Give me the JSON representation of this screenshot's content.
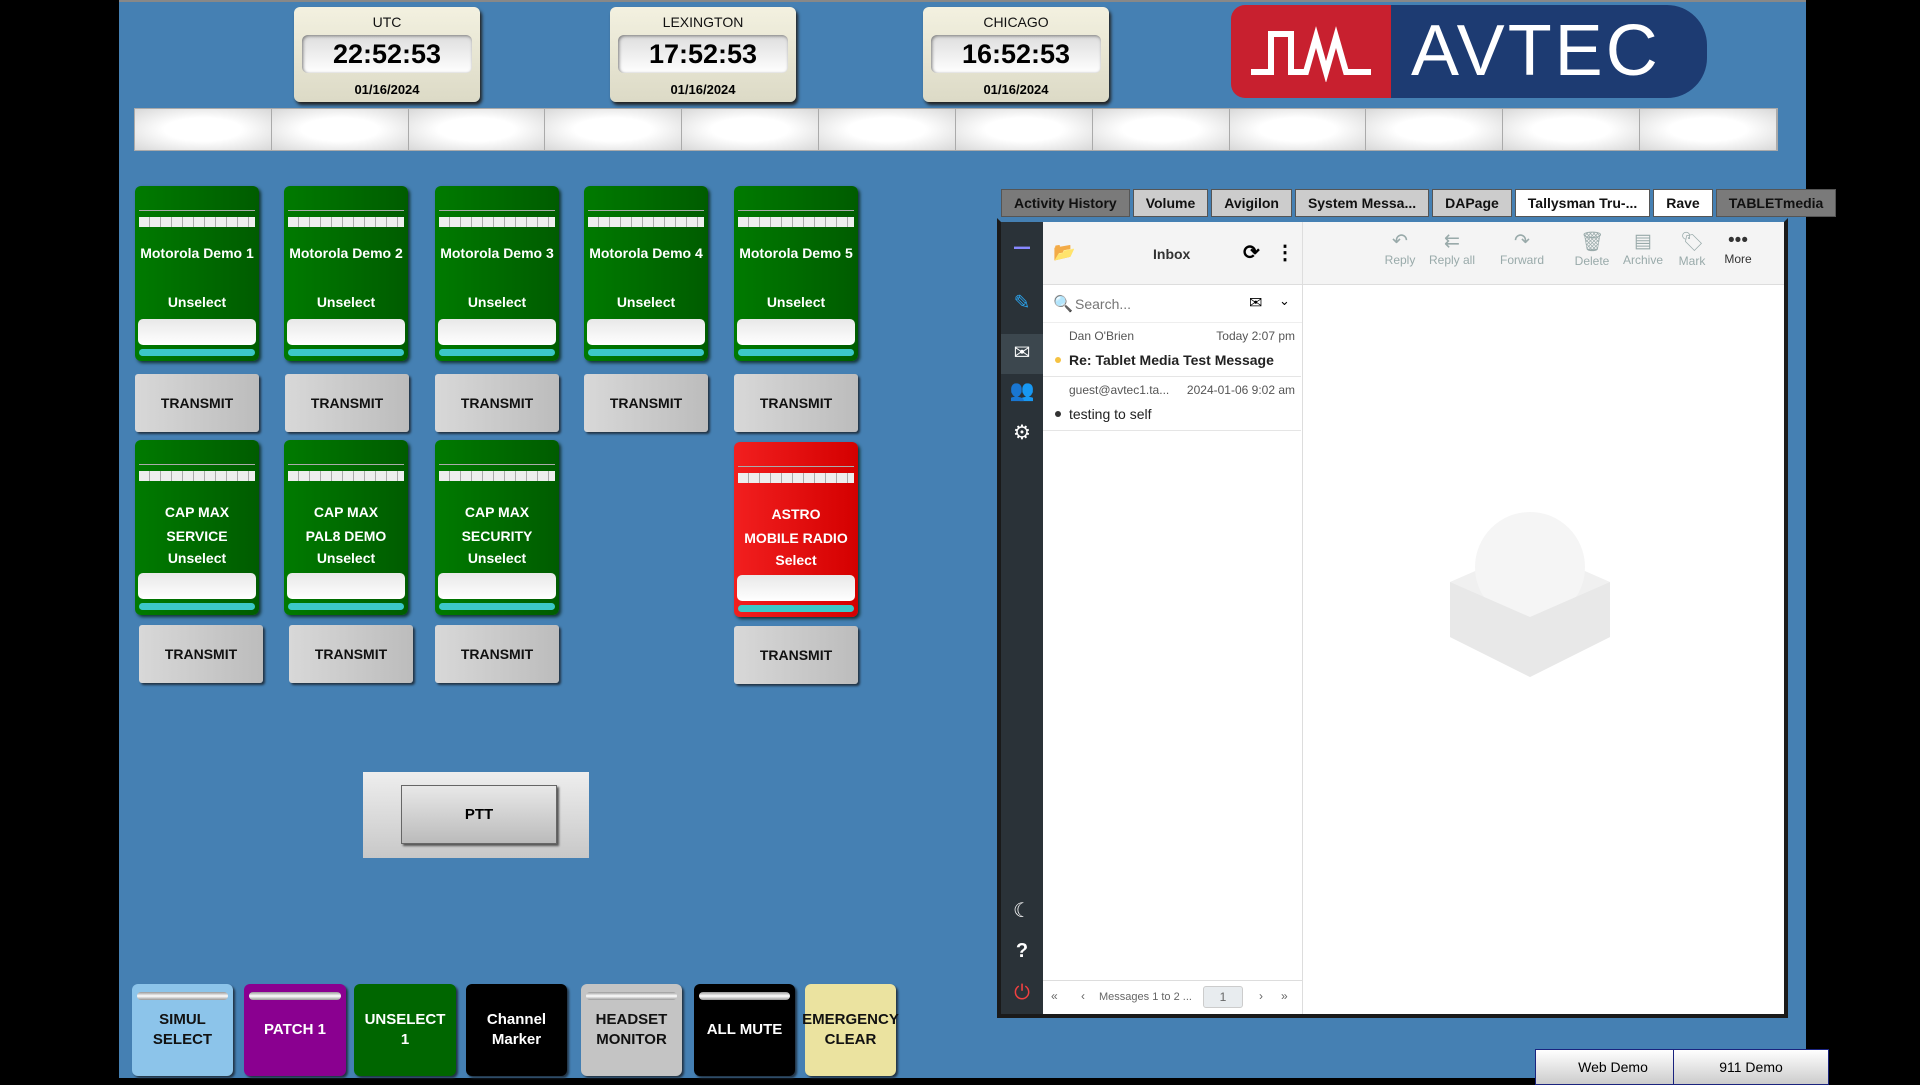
{
  "clocks": [
    {
      "label": "UTC",
      "time": "22:52:53",
      "date": "01/16/2024"
    },
    {
      "label": "LEXINGTON",
      "time": "17:52:53",
      "date": "01/16/2024"
    },
    {
      "label": "CHICAGO",
      "time": "16:52:53",
      "date": "01/16/2024"
    }
  ],
  "logo": {
    "text": "AVTEC"
  },
  "radios": [
    {
      "name": "Motorola Demo 1",
      "state": "Unselect",
      "transmit": "TRANSMIT",
      "color": "#006600"
    },
    {
      "name": "Motorola Demo 2",
      "state": "Unselect",
      "transmit": "TRANSMIT",
      "color": "#006600"
    },
    {
      "name": "Motorola Demo 3",
      "state": "Unselect",
      "transmit": "TRANSMIT",
      "color": "#006600"
    },
    {
      "name": "Motorola Demo 4",
      "state": "Unselect",
      "transmit": "TRANSMIT",
      "color": "#006600"
    },
    {
      "name": "Motorola Demo 5",
      "state": "Unselect",
      "transmit": "TRANSMIT",
      "color": "#006600"
    },
    {
      "name": "CAP MAX\nSERVICE",
      "state": "Unselect",
      "transmit": "TRANSMIT",
      "color": "#006600"
    },
    {
      "name": "CAP MAX\nPAL8 DEMO",
      "state": "Unselect",
      "transmit": "TRANSMIT",
      "color": "#006600"
    },
    {
      "name": "CAP MAX\nSECURITY",
      "state": "Unselect",
      "transmit": "TRANSMIT",
      "color": "#006600"
    },
    {
      "name": "ASTRO\nMOBILE RADIO",
      "state": "Select",
      "transmit": "TRANSMIT",
      "color": "#e60000"
    }
  ],
  "ptt": "PTT",
  "function_buttons": [
    {
      "label": "SIMUL\nSELECT",
      "bg": "#8cc4ea",
      "fg": "#111"
    },
    {
      "label": "PATCH 1",
      "bg": "#8a0090",
      "fg": "#fff"
    },
    {
      "label": "UNSELECT\n1",
      "bg": "#006600",
      "fg": "#fff"
    },
    {
      "label": "Channel\nMarker",
      "bg": "#000",
      "fg": "#fff"
    },
    {
      "label": "HEADSET\nMONITOR",
      "bg": "#c4c4c4",
      "fg": "#111"
    },
    {
      "label": "ALL MUTE",
      "bg": "#000",
      "fg": "#fff"
    },
    {
      "label": "EMERGENCY\nCLEAR",
      "bg": "#ebe3a0",
      "fg": "#111"
    }
  ],
  "tabs": [
    "Activity History",
    "Volume",
    "Avigilon",
    "System Messa...",
    "DAPage",
    "Tallysman Tru-...",
    "Rave",
    "TABLETmedia"
  ],
  "mail": {
    "folder": "Inbox",
    "search_placeholder": "Search...",
    "toolbar": [
      "Reply",
      "Reply all",
      "Forward",
      "Delete",
      "Archive",
      "Mark",
      "More"
    ],
    "messages": [
      {
        "from": "Dan O'Brien",
        "date": "Today 2:07 pm",
        "subject": "Re: Tablet Media Test Message",
        "unread": true
      },
      {
        "from": "guest@avtec1.ta...",
        "date": "2024-01-06 9:02 am",
        "subject": "testing to self",
        "unread": false
      }
    ],
    "pager": "Messages 1 to 2 ...",
    "page": "1"
  },
  "bottom_buttons": [
    "Web Demo",
    "911 Demo"
  ]
}
